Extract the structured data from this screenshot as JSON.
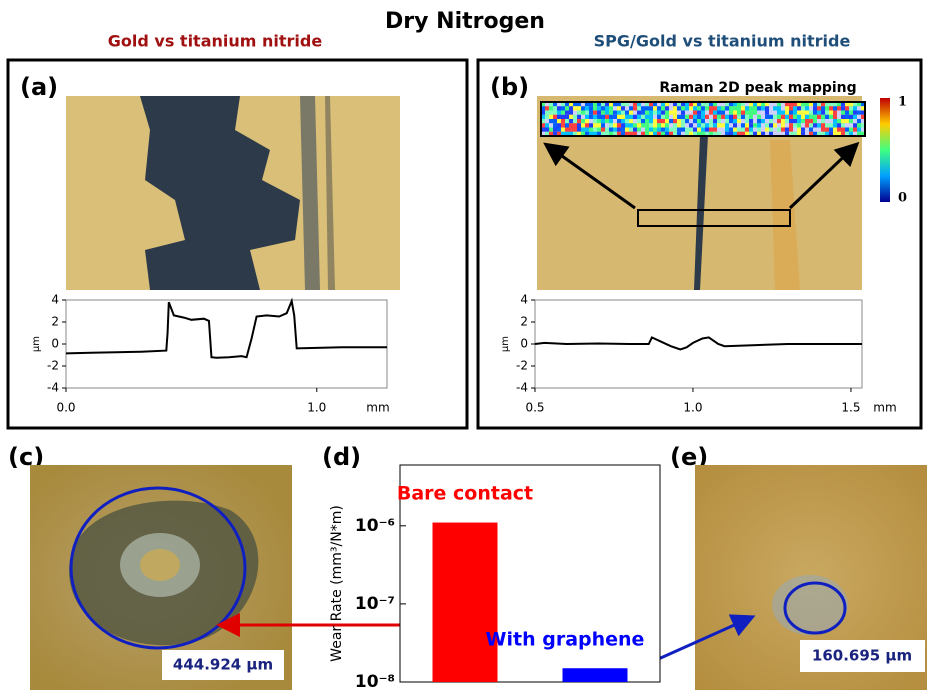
{
  "title": "Dry Nitrogen",
  "panels": {
    "a": {
      "label": "(a)",
      "subtitle": "Gold vs titanium nitride"
    },
    "b": {
      "label": "(b)",
      "subtitle": "SPG/Gold vs titanium nitride",
      "map_title": "Raman 2D peak mapping",
      "colorbar_ticks": [
        "1",
        "0"
      ]
    },
    "c": {
      "label": "(c)",
      "scale": "444.924 μm"
    },
    "d": {
      "label": "(d)"
    },
    "e": {
      "label": "(e)",
      "scale": "160.695 μm"
    }
  },
  "chart_data": [
    {
      "type": "line",
      "x": [
        0,
        0.1,
        0.2,
        0.3,
        0.4,
        0.405,
        0.41,
        0.43,
        0.47,
        0.5,
        0.55,
        0.57,
        0.58,
        0.6,
        0.65,
        0.7,
        0.72,
        0.74,
        0.76,
        0.8,
        0.85,
        0.88,
        0.9,
        0.91,
        0.92,
        1.0,
        1.1,
        1.2,
        1.28
      ],
      "series": [
        {
          "color": "#000000",
          "values": [
            -0.85,
            -0.8,
            -0.75,
            -0.7,
            -0.6,
            1,
            3.8,
            2.6,
            2.4,
            2.2,
            2.3,
            2.1,
            -1.2,
            -1.25,
            -1.2,
            -1.1,
            -1.2,
            0.5,
            2.5,
            2.6,
            2.5,
            2.8,
            3.9,
            2.6,
            -0.4,
            -0.35,
            -0.3,
            -0.3,
            -0.3
          ]
        }
      ],
      "xlim": [
        0,
        1.28
      ],
      "xticks": [
        {
          "value": 0,
          "label": "0.0"
        },
        {
          "value": 1,
          "label": "1.0"
        }
      ],
      "x_label": "mm",
      "y_label": "μm",
      "ylim": [
        -4,
        4
      ],
      "yticks": [
        -4,
        -2,
        0,
        2,
        4
      ]
    },
    {
      "type": "line",
      "x": [
        0.5,
        0.53,
        0.6,
        0.7,
        0.8,
        0.86,
        0.87,
        0.9,
        0.93,
        0.96,
        0.98,
        1.0,
        1.03,
        1.05,
        1.08,
        1.1,
        1.2,
        1.3,
        1.4,
        1.535
      ],
      "series": [
        {
          "color": "#000000",
          "values": [
            0,
            0.1,
            0,
            0.05,
            0,
            0,
            0.6,
            0.2,
            -0.2,
            -0.5,
            -0.3,
            0.1,
            0.5,
            0.6,
            0,
            -0.2,
            -0.1,
            0,
            0,
            0
          ]
        }
      ],
      "xlim": [
        0.5,
        1.535
      ],
      "xticks": [
        0.5,
        {
          "value": 1,
          "label": "1.0"
        },
        1.5
      ],
      "x_label": "mm",
      "y_label": "μm",
      "ylim": [
        -4,
        4
      ],
      "yticks": [
        -4,
        -2,
        0,
        2,
        4
      ]
    },
    {
      "type": "bar",
      "log_scale": true,
      "categories": [
        null,
        null
      ],
      "values": [
        1.1e-06,
        1.5e-08
      ],
      "colors": [
        "#ff0000",
        "#0000ff"
      ],
      "ylim": [
        1e-08,
        6e-06
      ],
      "yticks": [
        {
          "value": 1e-08,
          "label": "10⁻⁸"
        },
        {
          "value": 1e-07,
          "label": "10⁻⁷"
        },
        {
          "value": 1e-06,
          "label": "10⁻⁶"
        }
      ],
      "y_label": "Wear Rate (mm³/N*m)",
      "annotations": [
        {
          "text": "Bare contact",
          "color": "#ff0000"
        },
        {
          "text": "With graphene",
          "color": "#0000ff"
        }
      ]
    }
  ]
}
